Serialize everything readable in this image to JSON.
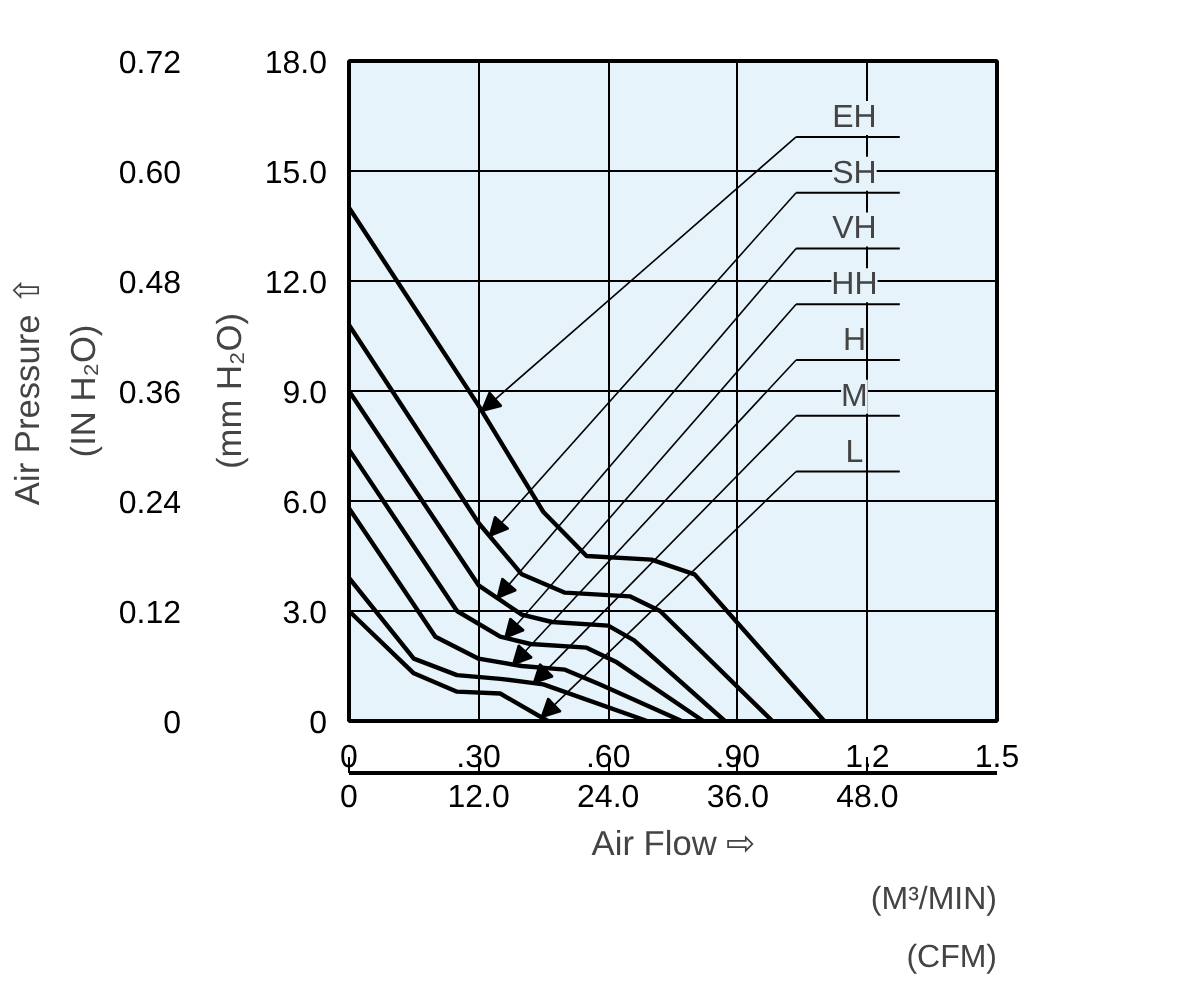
{
  "chart_data": {
    "type": "line",
    "xlabel": "Air Flow ⇨",
    "ylabel": "(mm H₂O)",
    "y2label": "(IN H₂O)",
    "x2label": "(CFM)",
    "annotations": [
      "Air Pressure ⇧",
      "(M³/MIN)"
    ],
    "xlim": [
      0,
      1.5
    ],
    "xticks": [
      0,
      {
        "value": 0.3,
        "label": ".30"
      },
      {
        "value": 0.6,
        "label": ".60"
      },
      {
        "value": 0.9,
        "label": ".90"
      },
      1.2,
      1.5
    ],
    "x2lim": [
      0,
      60
    ],
    "x2ticks": [
      0,
      {
        "value": 12,
        "label": "12.0"
      },
      {
        "value": 24,
        "label": "24.0"
      },
      {
        "value": 36,
        "label": "36.0"
      },
      {
        "value": 48,
        "label": "48.0"
      }
    ],
    "ylim": [
      0,
      18
    ],
    "yticks": [
      0,
      {
        "value": 3,
        "label": "3.0"
      },
      {
        "value": 6,
        "label": "6.0"
      },
      {
        "value": 9,
        "label": "9.0"
      },
      {
        "value": 12,
        "label": "12.0"
      },
      {
        "value": 15,
        "label": "15.0"
      },
      {
        "value": 18,
        "label": "18.0"
      }
    ],
    "y2lim": [
      0,
      0.72
    ],
    "y2ticks": [
      0,
      {
        "value": 0.12,
        "label": "0.12"
      },
      {
        "value": 0.24,
        "label": "0.24"
      },
      {
        "value": 0.36,
        "label": "0.36"
      },
      {
        "value": 0.48,
        "label": "0.48"
      },
      {
        "value": 0.6,
        "label": "0.60"
      },
      {
        "value": 0.72,
        "label": "0.72"
      }
    ],
    "grid": true,
    "legend": "top right",
    "marker": "none",
    "line_style": "solid",
    "series": [
      {
        "name": "EH",
        "color": "#000000",
        "x": [
          0,
          0.3,
          0.45,
          0.55,
          0.7,
          0.8,
          1.1
        ],
        "values": [
          14.0,
          8.6,
          5.7,
          4.5,
          4.4,
          4.0,
          0
        ]
      },
      {
        "name": "SH",
        "color": "#000000",
        "x": [
          0,
          0.3,
          0.4,
          0.5,
          0.65,
          0.72,
          0.98
        ],
        "values": [
          10.8,
          5.4,
          4.0,
          3.5,
          3.4,
          3.0,
          0
        ]
      },
      {
        "name": "VH",
        "color": "#000000",
        "x": [
          0,
          0.3,
          0.4,
          0.47,
          0.6,
          0.66,
          0.87
        ],
        "values": [
          9.0,
          3.7,
          2.9,
          2.7,
          2.6,
          2.2,
          0
        ]
      },
      {
        "name": "HH",
        "color": "#000000",
        "x": [
          0,
          0.25,
          0.35,
          0.42,
          0.55,
          0.62,
          0.82
        ],
        "values": [
          7.4,
          3.0,
          2.3,
          2.1,
          2.0,
          1.6,
          0
        ]
      },
      {
        "name": "H",
        "color": "#000000",
        "x": [
          0,
          0.2,
          0.3,
          0.4,
          0.5,
          0.58,
          0.77
        ],
        "values": [
          5.8,
          2.3,
          1.7,
          1.5,
          1.4,
          1.0,
          0
        ]
      },
      {
        "name": "M",
        "color": "#000000",
        "x": [
          0,
          0.15,
          0.25,
          0.35,
          0.45,
          0.69
        ],
        "values": [
          3.9,
          1.7,
          1.25,
          1.15,
          1.0,
          0
        ]
      },
      {
        "name": "L",
        "color": "#000000",
        "x": [
          0,
          0.15,
          0.25,
          0.35,
          0.46
        ],
        "values": [
          3.0,
          1.3,
          0.8,
          0.75,
          0
        ]
      }
    ]
  }
}
